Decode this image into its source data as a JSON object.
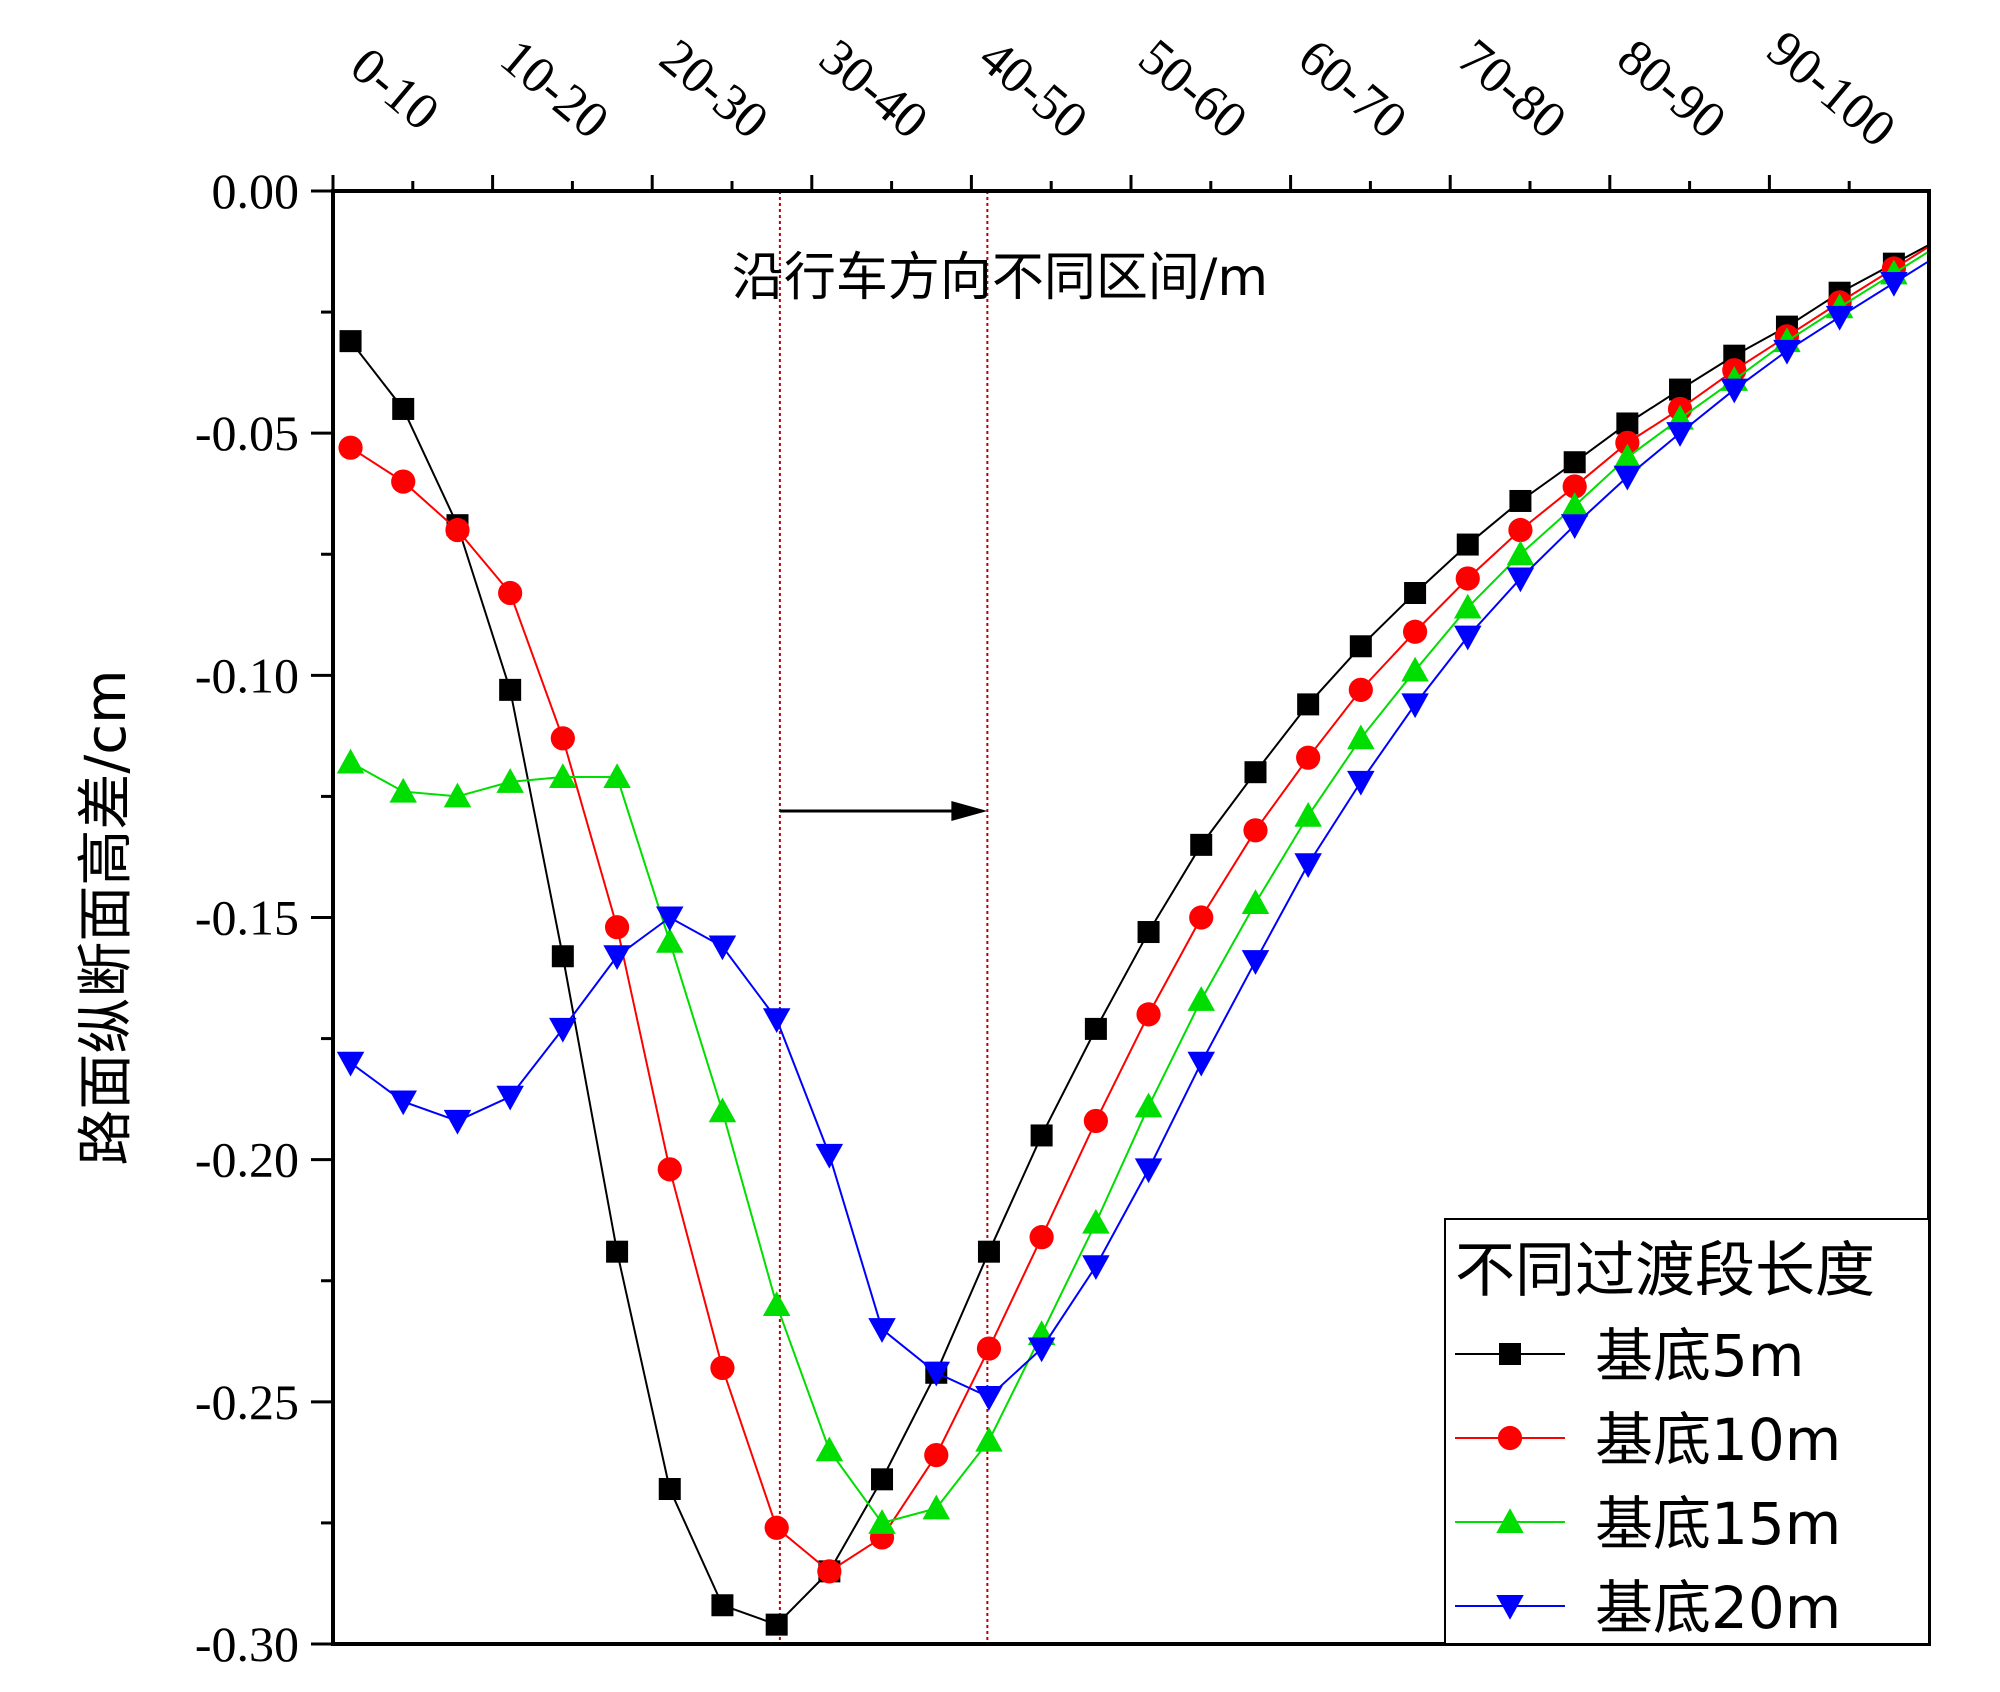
{
  "chart_data": {
    "type": "line",
    "title": "",
    "xlabel": "沿行车方向不同区间/m",
    "ylabel": "路面纵断面高差/cm",
    "x_categories": [
      "0-10",
      "10-20",
      "20-30",
      "30-40",
      "40-50",
      "50-60",
      "60-70",
      "70-80",
      "80-90",
      "90-100"
    ],
    "x_position": "top",
    "xlim": [
      0,
      100
    ],
    "ylim": [
      -0.3,
      0.0
    ],
    "yticks": [
      0.0,
      -0.05,
      -0.1,
      -0.15,
      -0.2,
      -0.25,
      -0.3
    ],
    "ytick_labels": [
      "0.00",
      "-0.05",
      "-0.10",
      "-0.15",
      "-0.20",
      "-0.25",
      "-0.30"
    ],
    "grid": false,
    "legend": {
      "title": "不同过渡段长度",
      "placement": "bottom-right"
    },
    "reference_lines": [
      28,
      41
    ],
    "arrow": {
      "from": 28,
      "to": 41,
      "y": -0.128
    },
    "series": [
      {
        "name": "基底5m",
        "color": "#000000",
        "marker": "square",
        "x": [
          1.1,
          4.4,
          7.8,
          11.1,
          14.4,
          17.8,
          21.1,
          24.4,
          27.8,
          31.1,
          34.4,
          37.8,
          41.1,
          44.4,
          47.8,
          51.1,
          54.4,
          57.8,
          61.1,
          64.4,
          67.8,
          71.1,
          74.4,
          77.8,
          81.1,
          84.4,
          87.8,
          91.1,
          94.4,
          97.8
        ],
        "y": [
          -0.031,
          -0.045,
          -0.069,
          -0.103,
          -0.158,
          -0.219,
          -0.268,
          -0.292,
          -0.296,
          -0.285,
          -0.266,
          -0.244,
          -0.219,
          -0.195,
          -0.173,
          -0.153,
          -0.135,
          -0.12,
          -0.106,
          -0.094,
          -0.083,
          -0.073,
          -0.064,
          -0.056,
          -0.048,
          -0.041,
          -0.034,
          -0.028,
          -0.021,
          -0.015
        ]
      },
      {
        "name": "基底10m",
        "color": "#ff0000",
        "marker": "circle",
        "x": [
          1.1,
          4.4,
          7.8,
          11.1,
          14.4,
          17.8,
          21.1,
          24.4,
          27.8,
          31.1,
          34.4,
          37.8,
          41.1,
          44.4,
          47.8,
          51.1,
          54.4,
          57.8,
          61.1,
          64.4,
          67.8,
          71.1,
          74.4,
          77.8,
          81.1,
          84.4,
          87.8,
          91.1,
          94.4,
          97.8
        ],
        "y": [
          -0.053,
          -0.06,
          -0.07,
          -0.083,
          -0.113,
          -0.152,
          -0.202,
          -0.243,
          -0.276,
          -0.285,
          -0.278,
          -0.261,
          -0.239,
          -0.216,
          -0.192,
          -0.17,
          -0.15,
          -0.132,
          -0.117,
          -0.103,
          -0.091,
          -0.08,
          -0.07,
          -0.061,
          -0.052,
          -0.045,
          -0.037,
          -0.03,
          -0.023,
          -0.016
        ]
      },
      {
        "name": "基底15m",
        "color": "#00dd00",
        "marker": "triangle-up",
        "x": [
          1.1,
          4.4,
          7.8,
          11.1,
          14.4,
          17.8,
          21.1,
          24.4,
          27.8,
          31.1,
          34.4,
          37.8,
          41.1,
          44.4,
          47.8,
          51.1,
          54.4,
          57.8,
          61.1,
          64.4,
          67.8,
          71.1,
          74.4,
          77.8,
          81.1,
          84.4,
          87.8,
          91.1,
          94.4,
          97.8
        ],
        "y": [
          -0.118,
          -0.124,
          -0.125,
          -0.122,
          -0.121,
          -0.121,
          -0.155,
          -0.19,
          -0.23,
          -0.26,
          -0.275,
          -0.272,
          -0.258,
          -0.236,
          -0.213,
          -0.189,
          -0.167,
          -0.147,
          -0.129,
          -0.113,
          -0.099,
          -0.086,
          -0.075,
          -0.065,
          -0.055,
          -0.047,
          -0.039,
          -0.031,
          -0.024,
          -0.017
        ]
      },
      {
        "name": "基底20m",
        "color": "#0000ff",
        "marker": "triangle-down",
        "x": [
          1.1,
          4.4,
          7.8,
          11.1,
          14.4,
          17.8,
          21.1,
          24.4,
          27.8,
          31.1,
          34.4,
          37.8,
          41.1,
          44.4,
          47.8,
          51.1,
          54.4,
          57.8,
          61.1,
          64.4,
          67.8,
          71.1,
          74.4,
          77.8,
          81.1,
          84.4,
          87.8,
          91.1,
          94.4,
          97.8
        ],
        "y": [
          -0.18,
          -0.188,
          -0.192,
          -0.187,
          -0.173,
          -0.158,
          -0.15,
          -0.156,
          -0.171,
          -0.199,
          -0.235,
          -0.244,
          -0.249,
          -0.239,
          -0.222,
          -0.202,
          -0.18,
          -0.159,
          -0.139,
          -0.122,
          -0.106,
          -0.092,
          -0.08,
          -0.069,
          -0.059,
          -0.05,
          -0.041,
          -0.033,
          -0.026,
          -0.019
        ]
      }
    ]
  }
}
